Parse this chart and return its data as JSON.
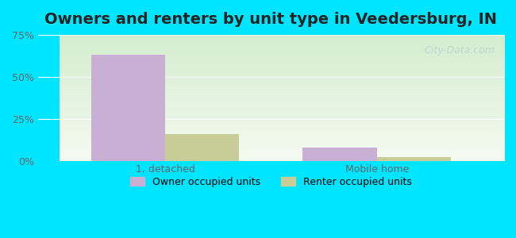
{
  "title": "Owners and renters by unit type in Veedersburg, IN",
  "categories": [
    "1, detached",
    "Mobile home"
  ],
  "owner_values": [
    63,
    8
  ],
  "renter_values": [
    16,
    2
  ],
  "owner_color": "#c9afd4",
  "renter_color": "#c8cc96",
  "ylim": [
    0,
    75
  ],
  "yticks": [
    0,
    25,
    50,
    75
  ],
  "ytick_labels": [
    "0%",
    "25%",
    "50%",
    "75%"
  ],
  "bar_width": 0.35,
  "background_top": "#e8f5e0",
  "background_bottom": "#f0faf0",
  "outer_bg": "#00e5ff",
  "title_fontsize": 14,
  "legend_labels": [
    "Owner occupied units",
    "Renter occupied units"
  ],
  "watermark": "City-Data.com"
}
